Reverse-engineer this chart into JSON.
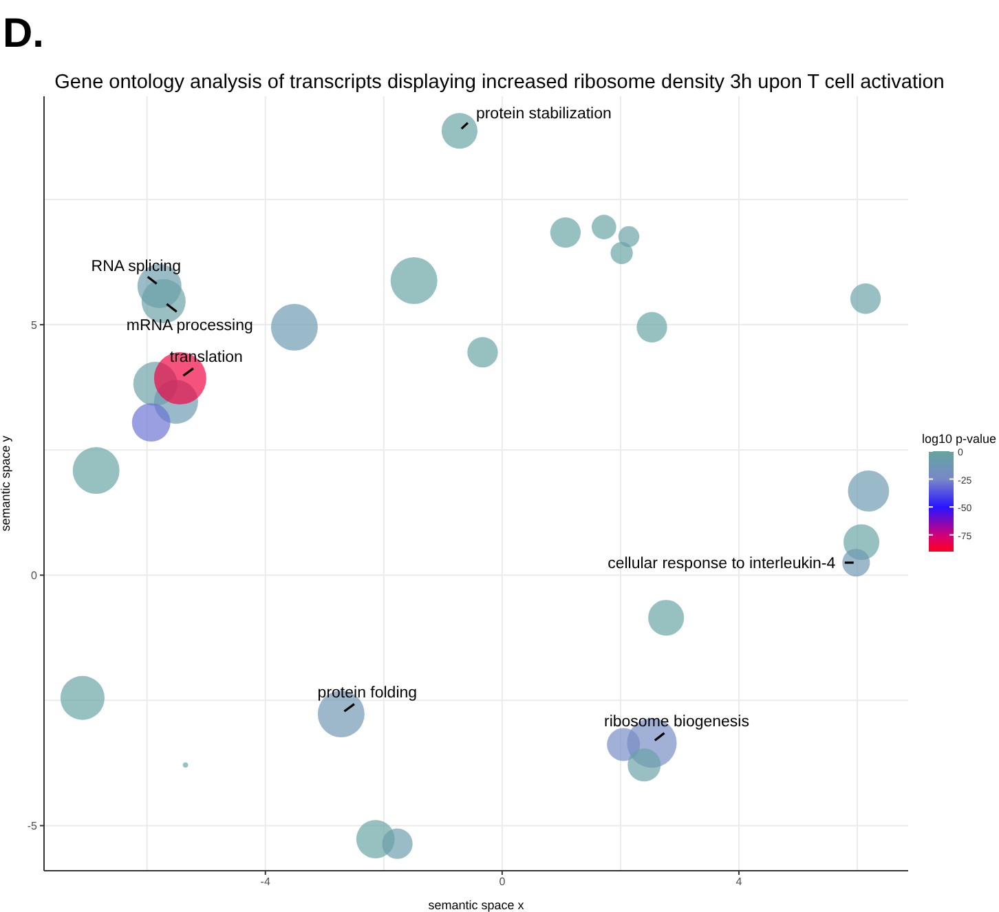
{
  "chart_data": {
    "type": "bubble",
    "title": "Gene ontology analysis of transcripts displaying increased ribosome density 3h upon T cell activation",
    "xlabel": "semantic space x",
    "ylabel": "semantic space y",
    "legend_title": "log10 p-value",
    "annotations": [
      "D.",
      {
        "text": "protein stabilization",
        "x": -0.72,
        "y": 8.87
      },
      {
        "text": "RNA splicing",
        "x": -5.79,
        "y": 5.77
      },
      {
        "text": "mRNA processing",
        "x": -5.72,
        "y": 5.47
      },
      {
        "text": "translation",
        "x": -5.44,
        "y": 3.93
      },
      {
        "text": "cellular response to interleukin-4",
        "x": 5.98,
        "y": 0.25
      },
      {
        "text": "protein folding",
        "x": -2.72,
        "y": -2.77
      },
      {
        "text": "ribosome biogenesis",
        "x": 2.53,
        "y": -3.35
      }
    ],
    "x": [
      -0.72,
      -5.79,
      -5.72,
      -5.86,
      -5.51,
      -5.93,
      -6.86,
      -3.51,
      -1.49,
      -0.33,
      1.07,
      1.72,
      2.14,
      2.02,
      2.53,
      6.14,
      6.19,
      6.07,
      5.98,
      2.77,
      2.05,
      2.53,
      2.4,
      -7.09,
      -5.35,
      -2.72,
      -2.14,
      -1.77,
      -5.44
    ],
    "values": [
      8.87,
      5.77,
      5.47,
      3.82,
      3.46,
      3.05,
      2.09,
      4.95,
      5.88,
      4.45,
      6.84,
      6.95,
      6.76,
      6.43,
      4.95,
      5.52,
      1.68,
      0.66,
      0.25,
      -0.85,
      -3.38,
      -3.35,
      -3.79,
      -2.45,
      -3.79,
      -2.77,
      -5.27,
      -5.36,
      3.93
    ],
    "sizes": [
      0.47,
      0.71,
      0.71,
      0.71,
      0.71,
      0.54,
      0.8,
      0.8,
      0.8,
      0.34,
      0.34,
      0.22,
      0.16,
      0.18,
      0.34,
      0.34,
      0.62,
      0.47,
      0.28,
      0.47,
      0.4,
      0.9,
      0.4,
      0.71,
      0.01,
      0.8,
      0.54,
      0.34,
      1
    ],
    "cvalues": [
      -3,
      -8,
      -5,
      -5,
      -10,
      -30,
      -3,
      -10,
      -3,
      -3,
      -3,
      -3,
      -5,
      -3,
      -3,
      -5,
      -10,
      -3,
      -12,
      -3,
      -22,
      -22,
      -5,
      -3,
      -3,
      -12,
      -3,
      -8,
      -85
    ],
    "clim": [
      -90,
      0
    ],
    "cticks": [
      0,
      -25,
      -50,
      -75
    ],
    "xlim": [
      -7.74,
      6.86
    ],
    "ylim": [
      -5.9,
      9.56
    ],
    "xticks": [
      -4,
      0,
      4
    ],
    "yticks": [
      -5,
      0,
      5
    ],
    "grid": true
  }
}
